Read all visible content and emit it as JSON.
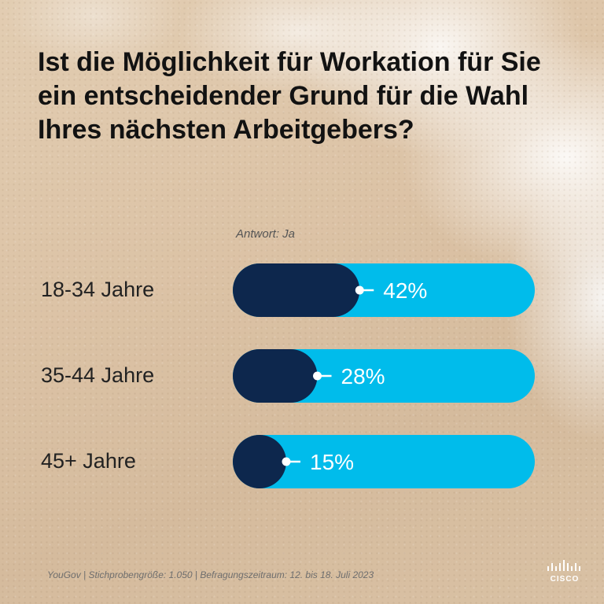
{
  "title": "Ist die Möglichkeit für Workation für Sie ein entscheidender Grund für die Wahl Ihres nächsten Arbeitgebers?",
  "answer_note": "Antwort: Ja",
  "source": "YouGov | Stichprobengröße: 1.050 | Befragungszeitraum: 12. bis 18. Juli 2023",
  "logo_text": "CISCO",
  "colors": {
    "bar_track": "#00bceb",
    "bar_fill": "#0d274d",
    "label_text": "#ffffff"
  },
  "chart_data": {
    "type": "bar",
    "orientation": "horizontal",
    "categories": [
      "18-34 Jahre",
      "35-44 Jahre",
      "45+ Jahre"
    ],
    "values": [
      42,
      28,
      15
    ],
    "value_labels": [
      "42%",
      "28%",
      "15%"
    ],
    "unit": "%",
    "xlim": [
      0,
      100
    ],
    "grid": false
  }
}
